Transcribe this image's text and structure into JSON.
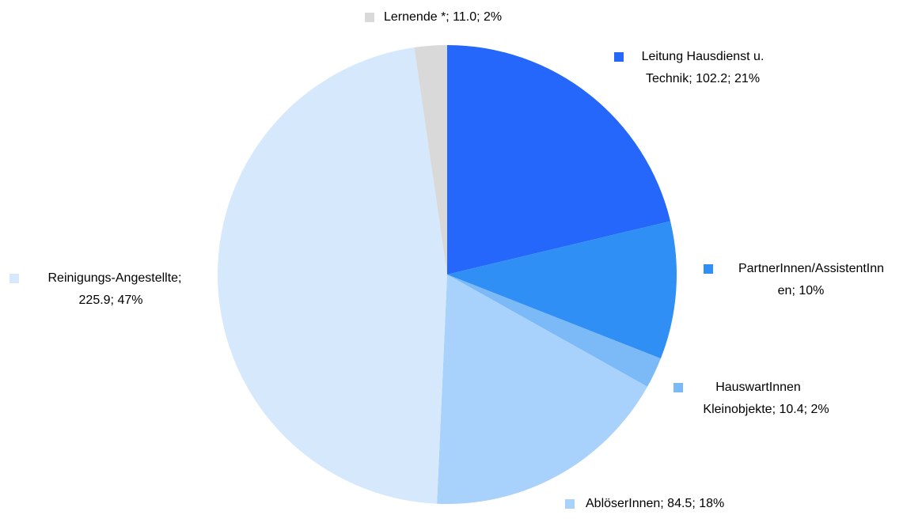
{
  "chart_data": {
    "type": "pie",
    "labels": [
      [
        "Leitung Hausdienst u.",
        "Technik; 102.2; 21%"
      ],
      [
        "PartnerInnen/AssistentInn",
        "en; 10%"
      ],
      [
        "HauswartInnen",
        "Kleinobjekte; 10.4; 2%"
      ],
      [
        "AblöserInnen; 84.5; 18%"
      ],
      [
        "Reinigungs-Angestellte;",
        "225.9; 47%"
      ],
      [
        "Lernende *; 11.0; 2%"
      ]
    ],
    "values": [
      102.2,
      46.6,
      10.4,
      84.5,
      225.9,
      11.0
    ],
    "colors": [
      "#2566fb",
      "#2f8ff5",
      "#7cb9f7",
      "#a8d1fb",
      "#d6e8fb",
      "#d9d9d9"
    ]
  }
}
